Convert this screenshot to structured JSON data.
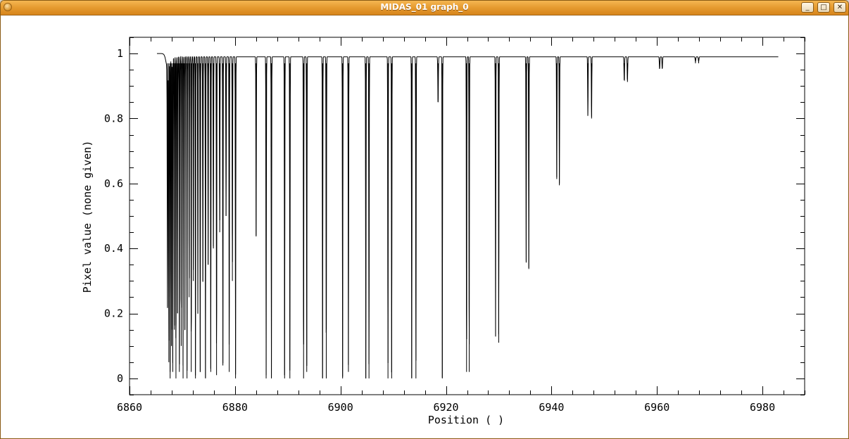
{
  "window": {
    "title": "MIDAS_01 graph_0",
    "minimize_icon": "minimize-icon",
    "maximize_icon": "maximize-icon",
    "close_icon": "close-icon",
    "minimize_glyph": "_",
    "maximize_glyph": "□",
    "close_glyph": "✕"
  },
  "chart_data": {
    "type": "line",
    "title": "",
    "xlabel": "Position ( )",
    "ylabel": "Pixel value (none given)",
    "xlim": [
      6860,
      6988
    ],
    "ylim": [
      -0.05,
      1.05
    ],
    "x_ticks": [
      6860,
      6880,
      6900,
      6920,
      6940,
      6960,
      6980
    ],
    "x_tick_labels": [
      "6860",
      "6880",
      "6900",
      "6920",
      "6940",
      "6960",
      "6980"
    ],
    "y_ticks": [
      0,
      0.2,
      0.4,
      0.6,
      0.8,
      1
    ],
    "y_tick_labels": [
      "0",
      "0.2",
      "0.4",
      "0.6",
      "0.8",
      "1"
    ],
    "grid": false,
    "series": [
      {
        "x_start": 6865.2,
        "x_end": 6983.0,
        "continuum": 1.0,
        "absorption_lines": [
          [
            6867.2,
            0.22,
            0.05
          ],
          [
            6867.45,
            0.05,
            0.04
          ],
          [
            6867.7,
            0.0,
            0.04
          ],
          [
            6867.95,
            0.1,
            0.04
          ],
          [
            6868.2,
            0.02,
            0.04
          ],
          [
            6868.5,
            0.15,
            0.04
          ],
          [
            6868.8,
            0.0,
            0.04
          ],
          [
            6869.1,
            0.2,
            0.04
          ],
          [
            6869.45,
            0.02,
            0.04
          ],
          [
            6869.8,
            0.1,
            0.04
          ],
          [
            6870.15,
            0.0,
            0.04
          ],
          [
            6870.5,
            0.15,
            0.04
          ],
          [
            6870.9,
            0.0,
            0.04
          ],
          [
            6871.3,
            0.25,
            0.04
          ],
          [
            6871.7,
            0.02,
            0.04
          ],
          [
            6872.1,
            0.3,
            0.04
          ],
          [
            6872.5,
            0.0,
            0.04
          ],
          [
            6872.95,
            0.2,
            0.04
          ],
          [
            6873.4,
            0.02,
            0.04
          ],
          [
            6873.9,
            0.3,
            0.04
          ],
          [
            6874.4,
            0.0,
            0.04
          ],
          [
            6874.9,
            0.35,
            0.04
          ],
          [
            6875.4,
            0.02,
            0.04
          ],
          [
            6875.9,
            0.4,
            0.04
          ],
          [
            6876.5,
            0.01,
            0.04
          ],
          [
            6877.1,
            0.45,
            0.04
          ],
          [
            6877.7,
            0.04,
            0.04
          ],
          [
            6878.3,
            0.5,
            0.04
          ],
          [
            6878.9,
            0.02,
            0.04
          ],
          [
            6879.5,
            0.3,
            0.04
          ],
          [
            6880.1,
            0.0,
            0.04
          ],
          [
            6884.0,
            0.44,
            0.04
          ],
          [
            6885.9,
            0.0,
            0.04
          ],
          [
            6886.9,
            0.0,
            0.04
          ],
          [
            6889.4,
            0.0,
            0.04
          ],
          [
            6890.4,
            0.0,
            0.04
          ],
          [
            6893.0,
            0.0,
            0.04
          ],
          [
            6893.6,
            0.02,
            0.04
          ],
          [
            6896.6,
            0.0,
            0.04
          ],
          [
            6897.3,
            0.0,
            0.04
          ],
          [
            6900.4,
            0.0,
            0.04
          ],
          [
            6901.5,
            0.02,
            0.04
          ],
          [
            6904.8,
            0.0,
            0.04
          ],
          [
            6905.4,
            0.0,
            0.04
          ],
          [
            6909.0,
            0.0,
            0.04
          ],
          [
            6909.7,
            0.0,
            0.04
          ],
          [
            6913.5,
            0.0,
            0.04
          ],
          [
            6914.3,
            0.0,
            0.04
          ],
          [
            6918.5,
            0.85,
            0.05
          ],
          [
            6919.3,
            0.0,
            0.04
          ],
          [
            6923.9,
            0.02,
            0.04
          ],
          [
            6924.4,
            0.02,
            0.04
          ],
          [
            6929.4,
            0.13,
            0.04
          ],
          [
            6930.0,
            0.11,
            0.04
          ],
          [
            6935.2,
            0.36,
            0.04
          ],
          [
            6935.7,
            0.34,
            0.04
          ],
          [
            6941.0,
            0.62,
            0.04
          ],
          [
            6941.5,
            0.6,
            0.04
          ],
          [
            6946.9,
            0.81,
            0.04
          ],
          [
            6947.6,
            0.8,
            0.04
          ],
          [
            6953.8,
            0.92,
            0.05
          ],
          [
            6954.4,
            0.92,
            0.05
          ],
          [
            6960.5,
            0.96,
            0.05
          ],
          [
            6961.0,
            0.96,
            0.05
          ],
          [
            6967.3,
            0.985,
            0.06
          ],
          [
            6967.9,
            0.985,
            0.06
          ]
        ]
      }
    ]
  }
}
